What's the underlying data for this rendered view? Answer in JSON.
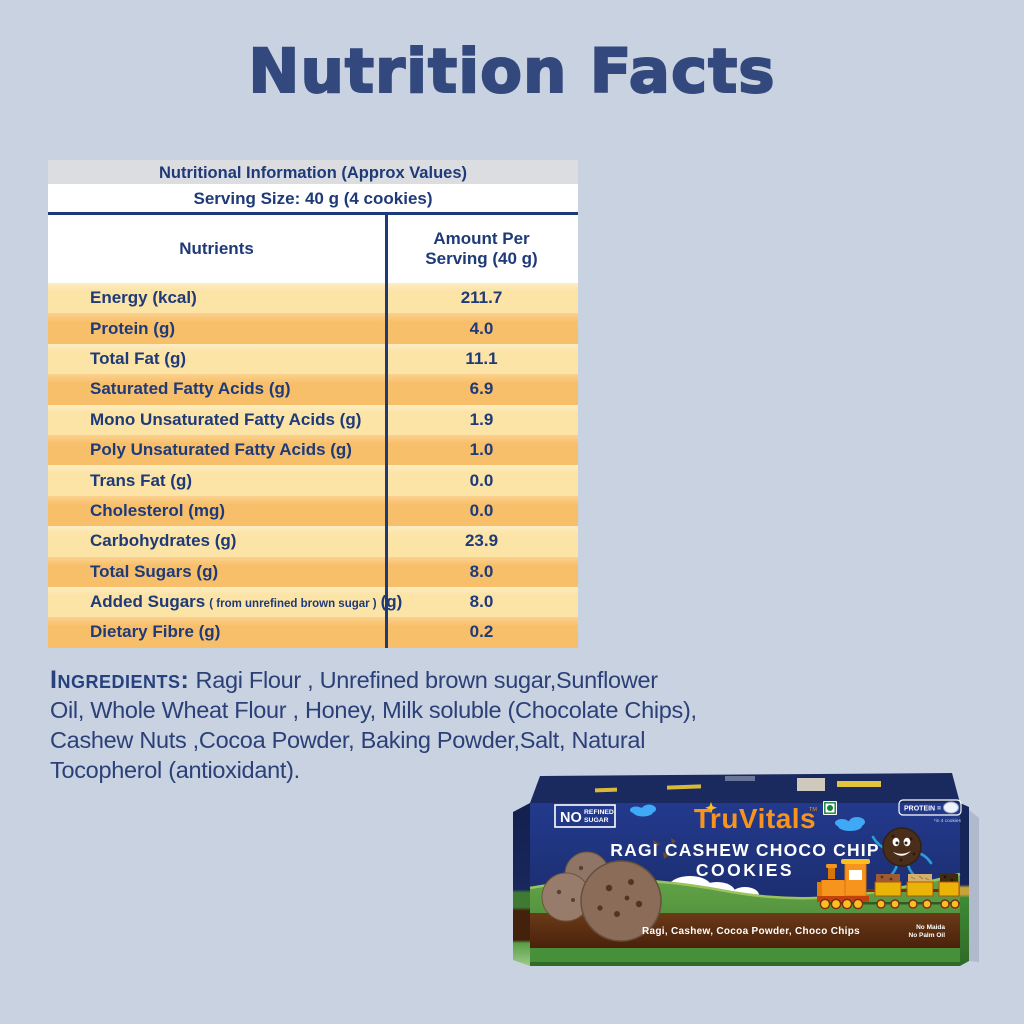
{
  "page": {
    "title": "Nutrition Facts"
  },
  "table": {
    "title": "Nutritional Information (Approx Values)",
    "serving_size": "Serving Size: 40 g (4 cookies)",
    "columns": {
      "nutrients": "Nutrients",
      "amount": "Amount Per Serving (40 g)"
    },
    "rows": [
      {
        "name": "Energy (kcal)",
        "amount": "211.7"
      },
      {
        "name": "Protein (g)",
        "amount": "4.0"
      },
      {
        "name": "Total Fat (g)",
        "amount": "11.1"
      },
      {
        "name": "Saturated Fatty Acids (g)",
        "amount": "6.9"
      },
      {
        "name": "Mono Unsaturated Fatty Acids (g)",
        "amount": "1.9"
      },
      {
        "name": "Poly Unsaturated Fatty Acids (g)",
        "amount": "1.0"
      },
      {
        "name": "Trans Fat (g)",
        "amount": "0.0"
      },
      {
        "name": "Cholesterol (mg)",
        "amount": "0.0"
      },
      {
        "name": "Carbohydrates (g)",
        "amount": "23.9"
      },
      {
        "name": "Total Sugars (g)",
        "amount": "8.0"
      },
      {
        "name": "Added Sugars",
        "note": "( from unrefined brown sugar )",
        "suffix": "(g)",
        "amount": "8.0"
      },
      {
        "name": "Dietary Fibre (g)",
        "amount": "0.2"
      }
    ]
  },
  "ingredients": {
    "label": "Ingredients:",
    "text": "Ragi Flour , Unrefined brown sugar,Sunflower Oil, Whole Wheat Flour , Honey, Milk soluble (Chocolate Chips), Cashew Nuts ,Cocoa Powder,  Baking Powder,Salt, Natural Tocopherol (antioxidant)."
  },
  "product_box": {
    "no_refined_sugar": {
      "no": "NO",
      "refined": "REFINED",
      "sugar": "SUGAR"
    },
    "brand": "TruVitals",
    "trademark": "TM",
    "protein_badge": {
      "label": "PROTEIN =",
      "note": "*in 4 cookies"
    },
    "title_line1": "RAGI CASHEW CHOCO CHIP",
    "title_line2": "COOKIES",
    "tagline": "Ragi, Cashew, Cocoa Powder, Choco Chips",
    "claims": {
      "line1": "No Maida",
      "line2": "No Palm Oil"
    }
  },
  "colors": {
    "background": "#c8d2e1",
    "navy_text": "#1e3a78",
    "title_navy": "#33497e",
    "row_light": "#fce3a6",
    "row_orange": "#f8bf6b",
    "header_gray": "#dcdde1",
    "brand_orange": "#f7941d",
    "box_blue": "#1e3584",
    "hill_green": "#4f9440",
    "band_brown": "#5a2d10"
  }
}
